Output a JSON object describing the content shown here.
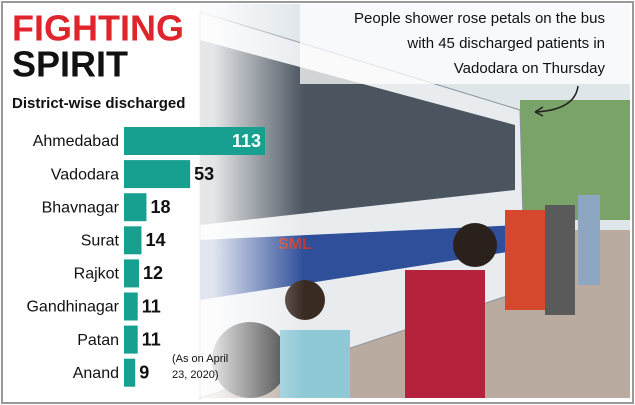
{
  "chart_data": {
    "type": "bar",
    "orientation": "horizontal",
    "title": [
      "FIGHTING",
      "SPIRIT"
    ],
    "subtitle": "District-wise discharged",
    "annotation": [
      "People shower rose petals on the bus",
      "with 45 discharged patients in",
      "Vadodara on Thursday"
    ],
    "note": [
      "(As on April",
      "23, 2020)"
    ],
    "categories": [
      "Ahmedabad",
      "Vadodara",
      "Bhavnagar",
      "Surat",
      "Rajkot",
      "Gandhinagar",
      "Patan",
      "Anand"
    ],
    "values": [
      113,
      53,
      18,
      14,
      12,
      11,
      11,
      9
    ],
    "color": "#17a08f"
  }
}
